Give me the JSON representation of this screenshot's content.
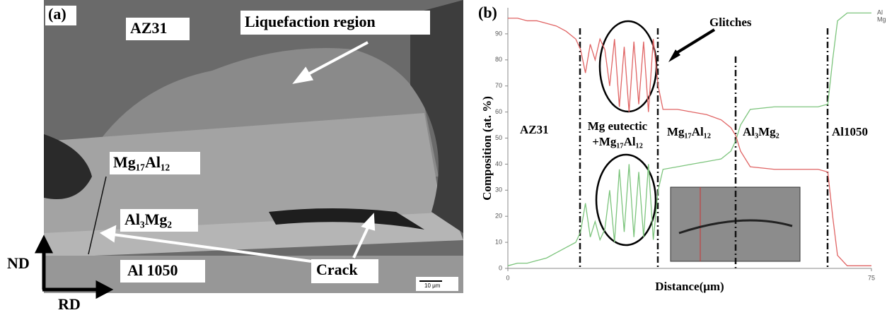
{
  "panel_a": {
    "label": "(a)",
    "texts": [
      "AZ31",
      "Liquefaction region",
      "Mg₁₇Al₁₂",
      "Al₃Mg₂",
      "Al 1050",
      "Crack"
    ],
    "axis_up": "ND",
    "axis_right": "RD",
    "scale_bar": "10 μm"
  },
  "chart_data": {
    "type": "line",
    "panel": "(b)",
    "y_label": "Composition (at. %)",
    "x_label": "Distance(μm)",
    "x": [
      0,
      2,
      4,
      6,
      8,
      10,
      12,
      14,
      15,
      16,
      17,
      18,
      19,
      20,
      21,
      22,
      23,
      24,
      25,
      26,
      27,
      28,
      29,
      30,
      31,
      32,
      35,
      38,
      41,
      44,
      46,
      47,
      48,
      50,
      55,
      60,
      64,
      66,
      67,
      68,
      70,
      72,
      75
    ],
    "series": [
      {
        "name": "Al",
        "color": "#7cc47c",
        "values": [
          1,
          2,
          2,
          3,
          4,
          6,
          8,
          10,
          14,
          25,
          12,
          18,
          11,
          15,
          30,
          10,
          38,
          14,
          40,
          12,
          37,
          12,
          40,
          11,
          30,
          38,
          39,
          40,
          41,
          42,
          45,
          49,
          55,
          61,
          62,
          62,
          62,
          63,
          80,
          95,
          98,
          98,
          98
        ]
      },
      {
        "name": "Mg",
        "color": "#e06464",
        "values": [
          96,
          96,
          95,
          95,
          94,
          93,
          91,
          88,
          84,
          75,
          86,
          80,
          88,
          84,
          70,
          88,
          62,
          85,
          60,
          87,
          63,
          87,
          60,
          88,
          70,
          61,
          61,
          60,
          59,
          57,
          54,
          51,
          45,
          39,
          38,
          38,
          38,
          37,
          20,
          5,
          1,
          1,
          1
        ]
      }
    ],
    "xlim": [
      0,
      75
    ],
    "xticks": [
      0,
      75
    ],
    "ylim": [
      0,
      100
    ],
    "yticks": [
      0,
      10,
      20,
      30,
      40,
      50,
      60,
      70,
      80,
      90
    ],
    "annotations": [
      "Glitches",
      "AZ31",
      "Mg eutectic",
      "+Mg₁₇Al₁₂",
      "Mg₁₇Al₁₂",
      "Al₃Mg₂",
      "Al1050"
    ]
  }
}
